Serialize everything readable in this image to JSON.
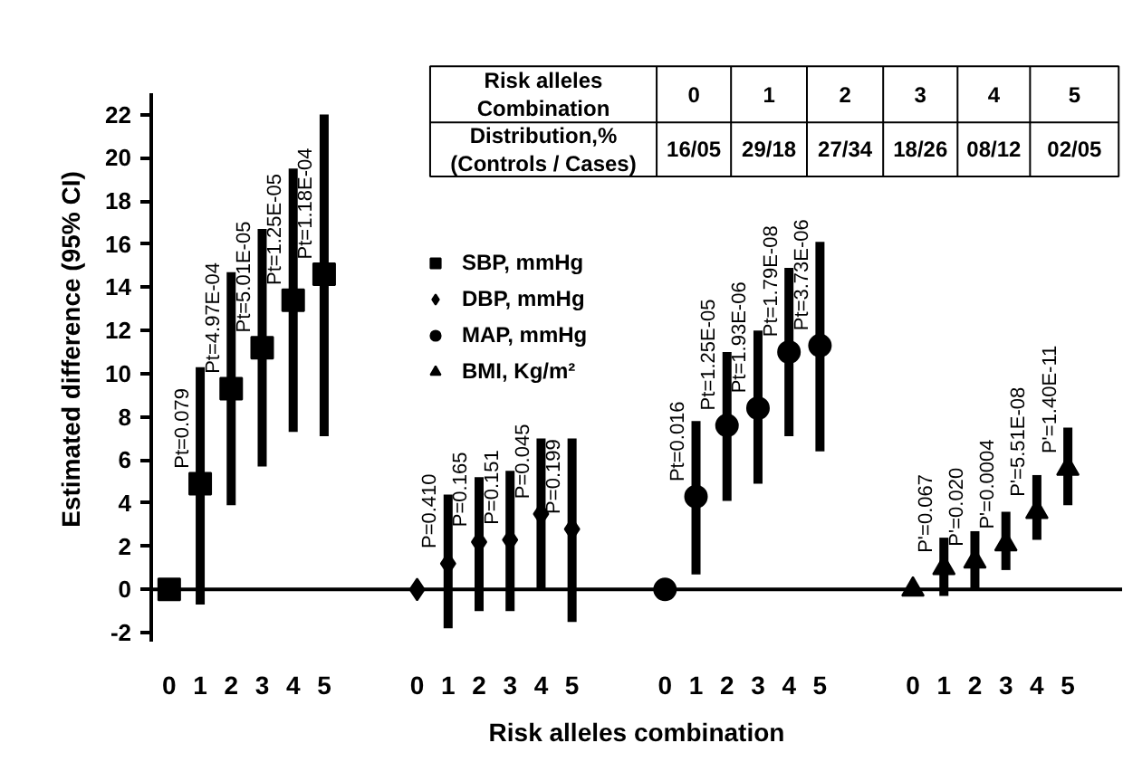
{
  "chart_data": {
    "type": "scatter",
    "xlabel": "Risk alleles combination",
    "ylabel": "Estimated difference (95% CI)",
    "categories": [
      "0",
      "1",
      "2",
      "3",
      "4",
      "5",
      null,
      null,
      "0",
      "1",
      "2",
      "3",
      "4",
      "5",
      null,
      null,
      "0",
      "1",
      "2",
      "3",
      "4",
      "5",
      null,
      null,
      "0",
      "1",
      "2",
      "3",
      "4",
      "5"
    ],
    "ylim": [
      -2.4,
      23
    ],
    "yticks": [
      -2,
      0,
      2,
      4,
      6,
      8,
      10,
      12,
      14,
      16,
      18,
      20,
      22
    ],
    "legend": "top",
    "ref_lines": [
      {
        "axis": "y",
        "value": 0,
        "color": "#000000"
      }
    ],
    "series": [
      {
        "name": "SBP, mmHg",
        "color": "#000000",
        "marker": "square",
        "values": [
          0,
          4.9,
          9.3,
          11.2,
          13.4,
          14.6,
          null,
          null,
          null,
          null,
          null,
          null,
          null,
          null,
          null,
          null,
          null,
          null,
          null,
          null,
          null,
          null,
          null,
          null,
          null,
          null,
          null,
          null,
          null,
          null
        ],
        "errors": [
          null,
          [
            -0.7,
            10.3
          ],
          [
            3.9,
            14.7
          ],
          [
            5.7,
            16.7
          ],
          [
            7.3,
            19.5
          ],
          [
            7.1,
            22.0
          ],
          null,
          null,
          null,
          null,
          null,
          null,
          null,
          null,
          null,
          null,
          null,
          null,
          null,
          null,
          null,
          null,
          null,
          null,
          null,
          null,
          null,
          null,
          null,
          null
        ]
      },
      {
        "name": "DBP, mmHg",
        "color": "#000000",
        "marker": "diamond",
        "values": [
          null,
          null,
          null,
          null,
          null,
          null,
          null,
          null,
          0,
          1.2,
          2.2,
          2.3,
          3.5,
          2.8,
          null,
          null,
          null,
          null,
          null,
          null,
          null,
          null,
          null,
          null,
          null,
          null,
          null,
          null,
          null,
          null
        ],
        "errors": [
          null,
          null,
          null,
          null,
          null,
          null,
          null,
          null,
          null,
          [
            -1.8,
            4.4
          ],
          [
            -1.0,
            5.2
          ],
          [
            -1.0,
            5.5
          ],
          [
            0,
            7.0
          ],
          [
            -1.5,
            7.0
          ],
          null,
          null,
          null,
          null,
          null,
          null,
          null,
          null,
          null,
          null,
          null,
          null,
          null,
          null,
          null,
          null
        ]
      },
      {
        "name": "MAP, mmHg",
        "color": "#000000",
        "marker": "circle",
        "values": [
          null,
          null,
          null,
          null,
          null,
          null,
          null,
          null,
          null,
          null,
          null,
          null,
          null,
          null,
          null,
          null,
          0,
          4.3,
          7.6,
          8.4,
          11.0,
          11.3,
          null,
          null,
          null,
          null,
          null,
          null,
          null,
          null
        ],
        "errors": [
          null,
          null,
          null,
          null,
          null,
          null,
          null,
          null,
          null,
          null,
          null,
          null,
          null,
          null,
          null,
          null,
          null,
          [
            0.7,
            7.8
          ],
          [
            4.1,
            11.0
          ],
          [
            4.9,
            12.0
          ],
          [
            7.1,
            14.9
          ],
          [
            6.4,
            16.1
          ],
          null,
          null,
          null,
          null,
          null,
          null,
          null,
          null
        ]
      },
      {
        "name": "BMI, Kg/m²",
        "color": "#000000",
        "marker": "triangle",
        "values": [
          null,
          null,
          null,
          null,
          null,
          null,
          null,
          null,
          null,
          null,
          null,
          null,
          null,
          null,
          null,
          null,
          null,
          null,
          null,
          null,
          null,
          null,
          null,
          null,
          0,
          1.0,
          1.3,
          2.1,
          3.6,
          5.6
        ],
        "errors": [
          null,
          null,
          null,
          null,
          null,
          null,
          null,
          null,
          null,
          null,
          null,
          null,
          null,
          null,
          null,
          null,
          null,
          null,
          null,
          null,
          null,
          null,
          null,
          null,
          null,
          [
            -0.3,
            2.4
          ],
          [
            0,
            2.7
          ],
          [
            0.9,
            3.6
          ],
          [
            2.3,
            5.3
          ],
          [
            3.9,
            7.5
          ]
        ]
      }
    ],
    "annotations": [
      "Pt=0.079",
      "Pt=4.97E-04",
      "Pt=5.01E-05",
      "Pt=1.25E-05",
      "Pt=1.18E-04",
      "P=0.410",
      "P=0.165",
      "P=0.151",
      "P=0.045",
      "P=0.199",
      "Pt=0.016",
      "Pt=1.25E-05",
      "Pt=1.93E-06",
      "Pt=1.79E-08",
      "Pt=3.73E-06",
      "P'=0.067",
      "P'=0.020",
      "P'=0.0004",
      "P'=5.51E-08",
      "P'=1.40E-11",
      "Risk alleles\nCombination",
      "0",
      "1",
      "2",
      "3",
      "4",
      "5",
      "Distribution,%\n(Controls / Cases)",
      "16/05",
      "29/18",
      "27/34",
      "18/26",
      "08/12",
      "02/05"
    ]
  }
}
